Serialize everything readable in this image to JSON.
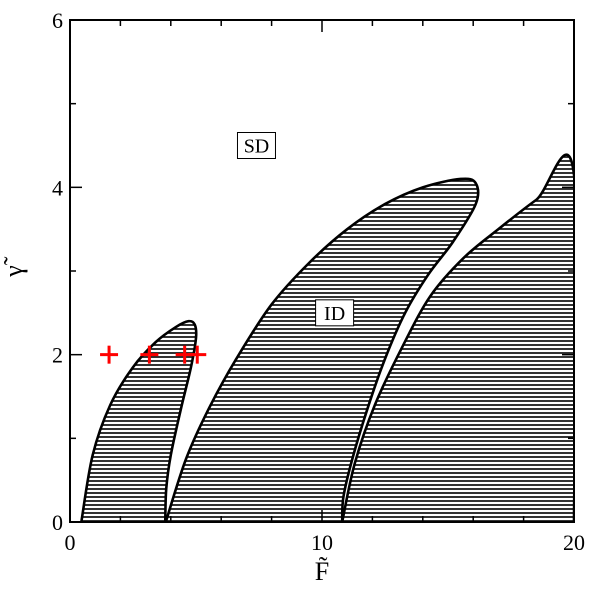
{
  "chart_data": {
    "type": "area",
    "xlabel": "F̃",
    "ylabel": "γ̃",
    "xlim": [
      0,
      20
    ],
    "ylim": [
      0,
      6
    ],
    "x_ticks": [
      0,
      10,
      20
    ],
    "y_ticks": [
      0,
      2,
      4,
      6
    ],
    "x_tick_labels": [
      "0",
      "10",
      "20"
    ],
    "y_tick_labels": [
      "0",
      "2",
      "4",
      "6"
    ],
    "minor_ticks": true,
    "grid": false,
    "fill_pattern": "horizontal-hatch",
    "hatch_color": "#000000",
    "annotations": [
      {
        "text": "SD",
        "x": 7.4,
        "y": 4.5
      },
      {
        "text": "ID",
        "x": 10.5,
        "y": 2.5
      }
    ],
    "regions": [
      {
        "name": "tongue-1",
        "points": [
          [
            0.45,
            0
          ],
          [
            0.9,
            0.8
          ],
          [
            1.6,
            1.4
          ],
          [
            2.5,
            1.85
          ],
          [
            3.4,
            2.15
          ],
          [
            4.2,
            2.33
          ],
          [
            4.7,
            2.4
          ],
          [
            4.95,
            2.36
          ],
          [
            5.0,
            2.2
          ],
          [
            4.8,
            1.85
          ],
          [
            4.4,
            1.35
          ],
          [
            4.0,
            0.8
          ],
          [
            3.82,
            0.4
          ],
          [
            3.78,
            0
          ]
        ]
      },
      {
        "name": "tongue-2",
        "points": [
          [
            3.8,
            0
          ],
          [
            4.6,
            0.75
          ],
          [
            5.5,
            1.35
          ],
          [
            6.6,
            1.95
          ],
          [
            8.0,
            2.6
          ],
          [
            9.5,
            3.1
          ],
          [
            11.0,
            3.5
          ],
          [
            12.5,
            3.8
          ],
          [
            14.0,
            4.0
          ],
          [
            15.5,
            4.1
          ],
          [
            16.1,
            4.05
          ],
          [
            16.1,
            3.8
          ],
          [
            15.2,
            3.35
          ],
          [
            14.2,
            2.95
          ],
          [
            13.3,
            2.5
          ],
          [
            12.5,
            1.95
          ],
          [
            11.8,
            1.35
          ],
          [
            11.2,
            0.75
          ],
          [
            10.85,
            0.3
          ],
          [
            10.8,
            0
          ]
        ]
      },
      {
        "name": "tongue-3",
        "points": [
          [
            10.8,
            0
          ],
          [
            11.3,
            0.7
          ],
          [
            12.1,
            1.4
          ],
          [
            13.2,
            2.1
          ],
          [
            14.3,
            2.7
          ],
          [
            15.6,
            3.15
          ],
          [
            17.0,
            3.5
          ],
          [
            18.5,
            3.85
          ],
          [
            20.0,
            4.15
          ],
          [
            20.0,
            0
          ]
        ]
      }
    ],
    "series": [
      {
        "marker": "+",
        "color": "#ff0000",
        "x": [
          1.55,
          3.15,
          4.55,
          5.05
        ],
        "y": [
          2.0,
          2.0,
          2.0,
          2.0
        ]
      }
    ]
  }
}
